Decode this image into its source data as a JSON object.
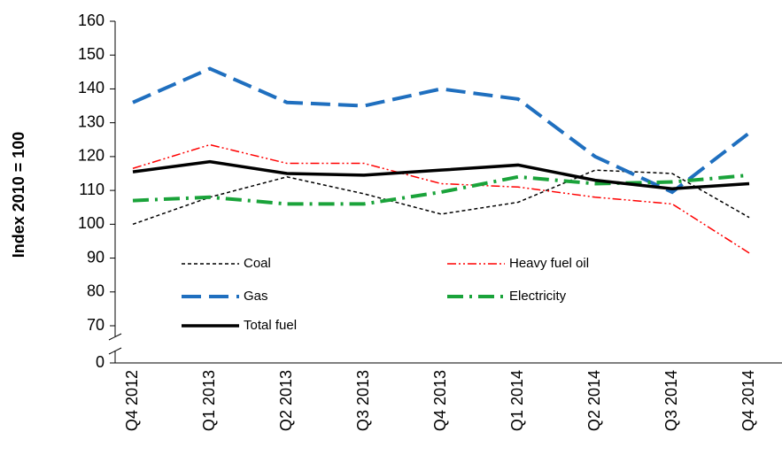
{
  "chart_data": {
    "type": "line",
    "y_label": "Index 2010 = 100",
    "categories": [
      "Q4 2012",
      "Q1 2013",
      "Q2 2013",
      "Q3 2013",
      "Q4 2013",
      "Q1 2014",
      "Q2 2014",
      "Q3 2014",
      "Q4 2014"
    ],
    "series": [
      {
        "name": "Coal",
        "color": "#000000",
        "dash": "4,3",
        "width": 1.5,
        "values": [
          100,
          108,
          114,
          109,
          103,
          106.5,
          116,
          115,
          102
        ]
      },
      {
        "name": "Heavy fuel oil",
        "color": "#ff0000",
        "dash": "10,3,2,3,2,3",
        "width": 1.5,
        "values": [
          116.5,
          123.5,
          118,
          118,
          112,
          111,
          108,
          106,
          91.5
        ]
      },
      {
        "name": "Gas",
        "color": "#1f6fbf",
        "dash": "22,9",
        "width": 4,
        "values": [
          136,
          146,
          136,
          135,
          140,
          137,
          120,
          109.5,
          127
        ]
      },
      {
        "name": "Electricity",
        "color": "#1aa33a",
        "dash": "18,7,3,7",
        "width": 4,
        "values": [
          107,
          108,
          106,
          106,
          109.5,
          114,
          112,
          112.5,
          114.5
        ]
      },
      {
        "name": "Total fuel",
        "color": "#000000",
        "dash": "none",
        "width": 3.5,
        "values": [
          115.5,
          118.5,
          115,
          114.5,
          116,
          117.5,
          113,
          110.5,
          112
        ]
      }
    ],
    "ylim": [
      0,
      160
    ],
    "y_break": [
      0,
      70
    ],
    "yticks": [
      0,
      70,
      80,
      90,
      100,
      110,
      120,
      130,
      140,
      150,
      160
    ]
  }
}
